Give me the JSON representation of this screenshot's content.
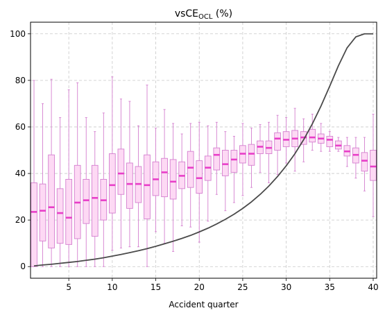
{
  "chart_data": {
    "type": "box",
    "title": "vsCE",
    "title_subscript": "OCL",
    "title_suffix": " (%)",
    "xlabel": "Accident quarter",
    "ylabel": "",
    "xlim": [
      0.6,
      40.4
    ],
    "ylim": [
      -5,
      105
    ],
    "xticks": [
      5,
      10,
      15,
      20,
      25,
      30,
      35,
      40
    ],
    "yticks": [
      0,
      20,
      40,
      60,
      80,
      100
    ],
    "grid": true,
    "colors": {
      "box_fill": "#fdd9f4",
      "box_edge": "#d47fcf",
      "median": "#e83ec8",
      "whisker": "#d47fcf",
      "line": "#4a4a4a",
      "grid": "#c8c8c8"
    },
    "boxes": [
      {
        "x": 1,
        "whislo": 0,
        "q1": 0,
        "med": 23.5,
        "q3": 36,
        "whishi": 80
      },
      {
        "x": 2,
        "whislo": 0,
        "q1": 11,
        "med": 24,
        "q3": 35.5,
        "whishi": 70
      },
      {
        "x": 3,
        "whislo": 0,
        "q1": 8,
        "med": 25.5,
        "q3": 48,
        "whishi": 80.5
      },
      {
        "x": 4,
        "whislo": 0,
        "q1": 10,
        "med": 23,
        "q3": 33.5,
        "whishi": 64
      },
      {
        "x": 5,
        "whislo": 0,
        "q1": 9.5,
        "med": 21,
        "q3": 37.5,
        "whishi": 76
      },
      {
        "x": 6,
        "whislo": 0,
        "q1": 12,
        "med": 27.5,
        "q3": 43.5,
        "whishi": 79
      },
      {
        "x": 7,
        "whislo": 0,
        "q1": 18.5,
        "med": 28.5,
        "q3": 37.5,
        "whishi": 64
      },
      {
        "x": 8,
        "whislo": 0,
        "q1": 13,
        "med": 29.5,
        "q3": 43.5,
        "whishi": 58
      },
      {
        "x": 9,
        "whislo": 0,
        "q1": 20,
        "med": 28.5,
        "q3": 37.5,
        "whishi": 66
      },
      {
        "x": 10,
        "whislo": 7,
        "q1": 23,
        "med": 35,
        "q3": 48.5,
        "whishi": 81.5
      },
      {
        "x": 11,
        "whislo": 8,
        "q1": 31,
        "med": 40,
        "q3": 50.5,
        "whishi": 72
      },
      {
        "x": 12,
        "whislo": 8.5,
        "q1": 25,
        "med": 35.5,
        "q3": 44.5,
        "whishi": 71
      },
      {
        "x": 13,
        "whislo": 8.5,
        "q1": 27.5,
        "med": 35.5,
        "q3": 43,
        "whishi": 60.5
      },
      {
        "x": 14,
        "whislo": 0,
        "q1": 20.5,
        "med": 35,
        "q3": 48,
        "whishi": 78
      },
      {
        "x": 15,
        "whislo": 15,
        "q1": 30.5,
        "med": 37.5,
        "q3": 45,
        "whishi": 59.5
      },
      {
        "x": 16,
        "whislo": 10,
        "q1": 30,
        "med": 40.5,
        "q3": 46.5,
        "whishi": 67.5
      },
      {
        "x": 17,
        "whislo": 6.5,
        "q1": 29,
        "med": 36.5,
        "q3": 46,
        "whishi": 61.5
      },
      {
        "x": 18,
        "whislo": 17.5,
        "q1": 33.5,
        "med": 39,
        "q3": 45,
        "whishi": 57
      },
      {
        "x": 19,
        "whislo": 17,
        "q1": 34,
        "med": 42.5,
        "q3": 49.5,
        "whishi": 61.5
      },
      {
        "x": 20,
        "whislo": 10.5,
        "q1": 31.5,
        "med": 38,
        "q3": 45.5,
        "whishi": 62
      },
      {
        "x": 21,
        "whislo": 19.5,
        "q1": 37,
        "med": 42.5,
        "q3": 47.5,
        "whishi": 60.5
      },
      {
        "x": 22,
        "whislo": 31,
        "q1": 41.5,
        "med": 48,
        "q3": 51,
        "whishi": 62
      },
      {
        "x": 23,
        "whislo": 24,
        "q1": 39,
        "med": 44,
        "q3": 50,
        "whishi": 58
      },
      {
        "x": 24,
        "whislo": 27.5,
        "q1": 40.5,
        "med": 46,
        "q3": 50,
        "whishi": 56
      },
      {
        "x": 25,
        "whislo": 30.5,
        "q1": 44.5,
        "med": 48.5,
        "q3": 52,
        "whishi": 61.5
      },
      {
        "x": 26,
        "whislo": 34,
        "q1": 43.5,
        "med": 48.5,
        "q3": 52.5,
        "whishi": 59.5
      },
      {
        "x": 27,
        "whislo": 40.5,
        "q1": 48.5,
        "med": 51.5,
        "q3": 54,
        "whishi": 61
      },
      {
        "x": 28,
        "whislo": 36,
        "q1": 48.5,
        "med": 51,
        "q3": 54,
        "whishi": 62
      },
      {
        "x": 29,
        "whislo": 39.5,
        "q1": 50,
        "med": 55,
        "q3": 57.5,
        "whishi": 65
      },
      {
        "x": 30,
        "whislo": 44.5,
        "q1": 51.5,
        "med": 54.5,
        "q3": 58,
        "whishi": 64
      },
      {
        "x": 31,
        "whislo": 41,
        "q1": 51.5,
        "med": 55,
        "q3": 58.5,
        "whishi": 68
      },
      {
        "x": 32,
        "whislo": 45,
        "q1": 52.5,
        "med": 55.5,
        "q3": 58,
        "whishi": 63.5
      },
      {
        "x": 33,
        "whislo": 50,
        "q1": 53.5,
        "med": 55.5,
        "q3": 59,
        "whishi": 65.5
      },
      {
        "x": 34,
        "whislo": 49.5,
        "q1": 53,
        "med": 55,
        "q3": 57,
        "whishi": 61.5
      },
      {
        "x": 35,
        "whislo": 49.5,
        "q1": 51.5,
        "med": 54.5,
        "q3": 56,
        "whishi": 58
      },
      {
        "x": 36,
        "whislo": 49.5,
        "q1": 50.5,
        "med": 52,
        "q3": 54,
        "whishi": 55.5
      },
      {
        "x": 37,
        "whislo": 43,
        "q1": 47.5,
        "med": 49.5,
        "q3": 52,
        "whishi": 55.5
      },
      {
        "x": 38,
        "whislo": 38,
        "q1": 44.5,
        "med": 48,
        "q3": 51,
        "whishi": 55.5
      },
      {
        "x": 39,
        "whislo": 32.5,
        "q1": 41,
        "med": 45.5,
        "q3": 49,
        "whishi": 55.5
      },
      {
        "x": 40,
        "whislo": 21.5,
        "q1": 37,
        "med": 43,
        "q3": 50,
        "whishi": 65.5
      }
    ],
    "line": {
      "x": [
        1,
        2,
        3,
        4,
        5,
        6,
        7,
        8,
        9,
        10,
        11,
        12,
        13,
        14,
        15,
        16,
        17,
        18,
        19,
        20,
        21,
        22,
        23,
        24,
        25,
        26,
        27,
        28,
        29,
        30,
        31,
        32,
        33,
        34,
        35,
        36,
        37,
        38,
        39,
        40
      ],
      "y": [
        0.3,
        0.7,
        1.0,
        1.4,
        1.8,
        2.2,
        2.7,
        3.2,
        3.8,
        4.5,
        5.2,
        6.0,
        6.8,
        7.7,
        8.7,
        9.8,
        10.9,
        12.1,
        13.4,
        14.9,
        16.5,
        18.3,
        20.3,
        22.5,
        25.0,
        27.8,
        31.0,
        34.6,
        38.7,
        43.3,
        48.5,
        54.5,
        61.3,
        69.0,
        77.5,
        86.3,
        94.0,
        98.7,
        100.0,
        100.0
      ]
    }
  }
}
